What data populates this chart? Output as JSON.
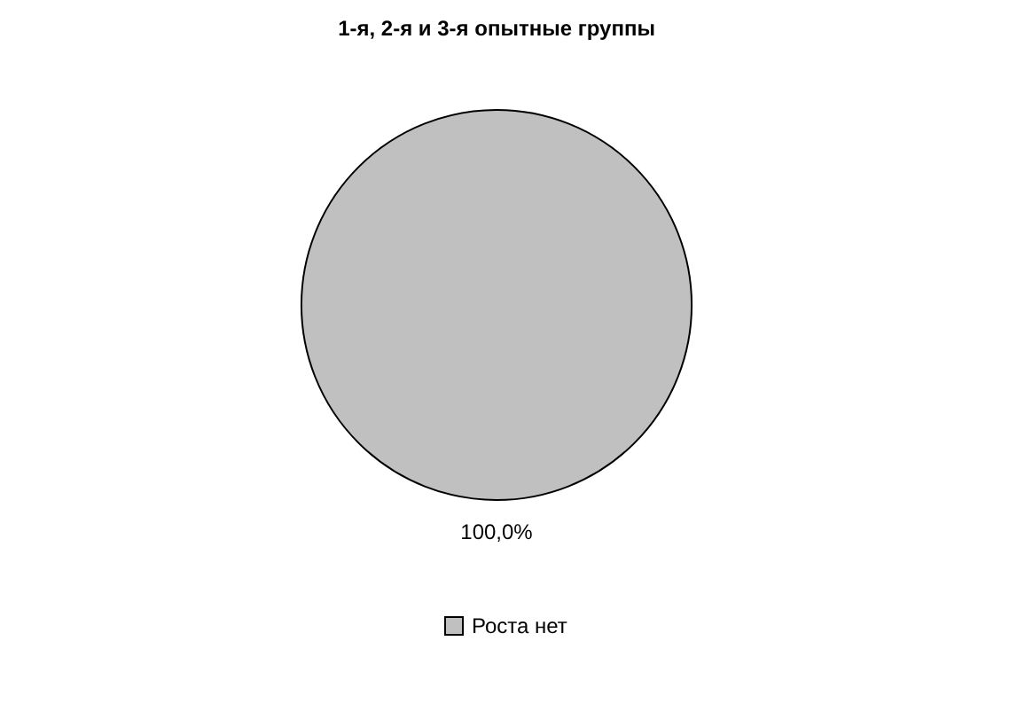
{
  "chart_data": {
    "type": "pie",
    "title": "1-я, 2-я и 3-я опытные группы",
    "categories": [
      "Роста нет"
    ],
    "values": [
      100
    ],
    "colors": [
      "#c0c0c0"
    ],
    "value_labels": [
      "100,0%"
    ],
    "legend": "bottom"
  }
}
